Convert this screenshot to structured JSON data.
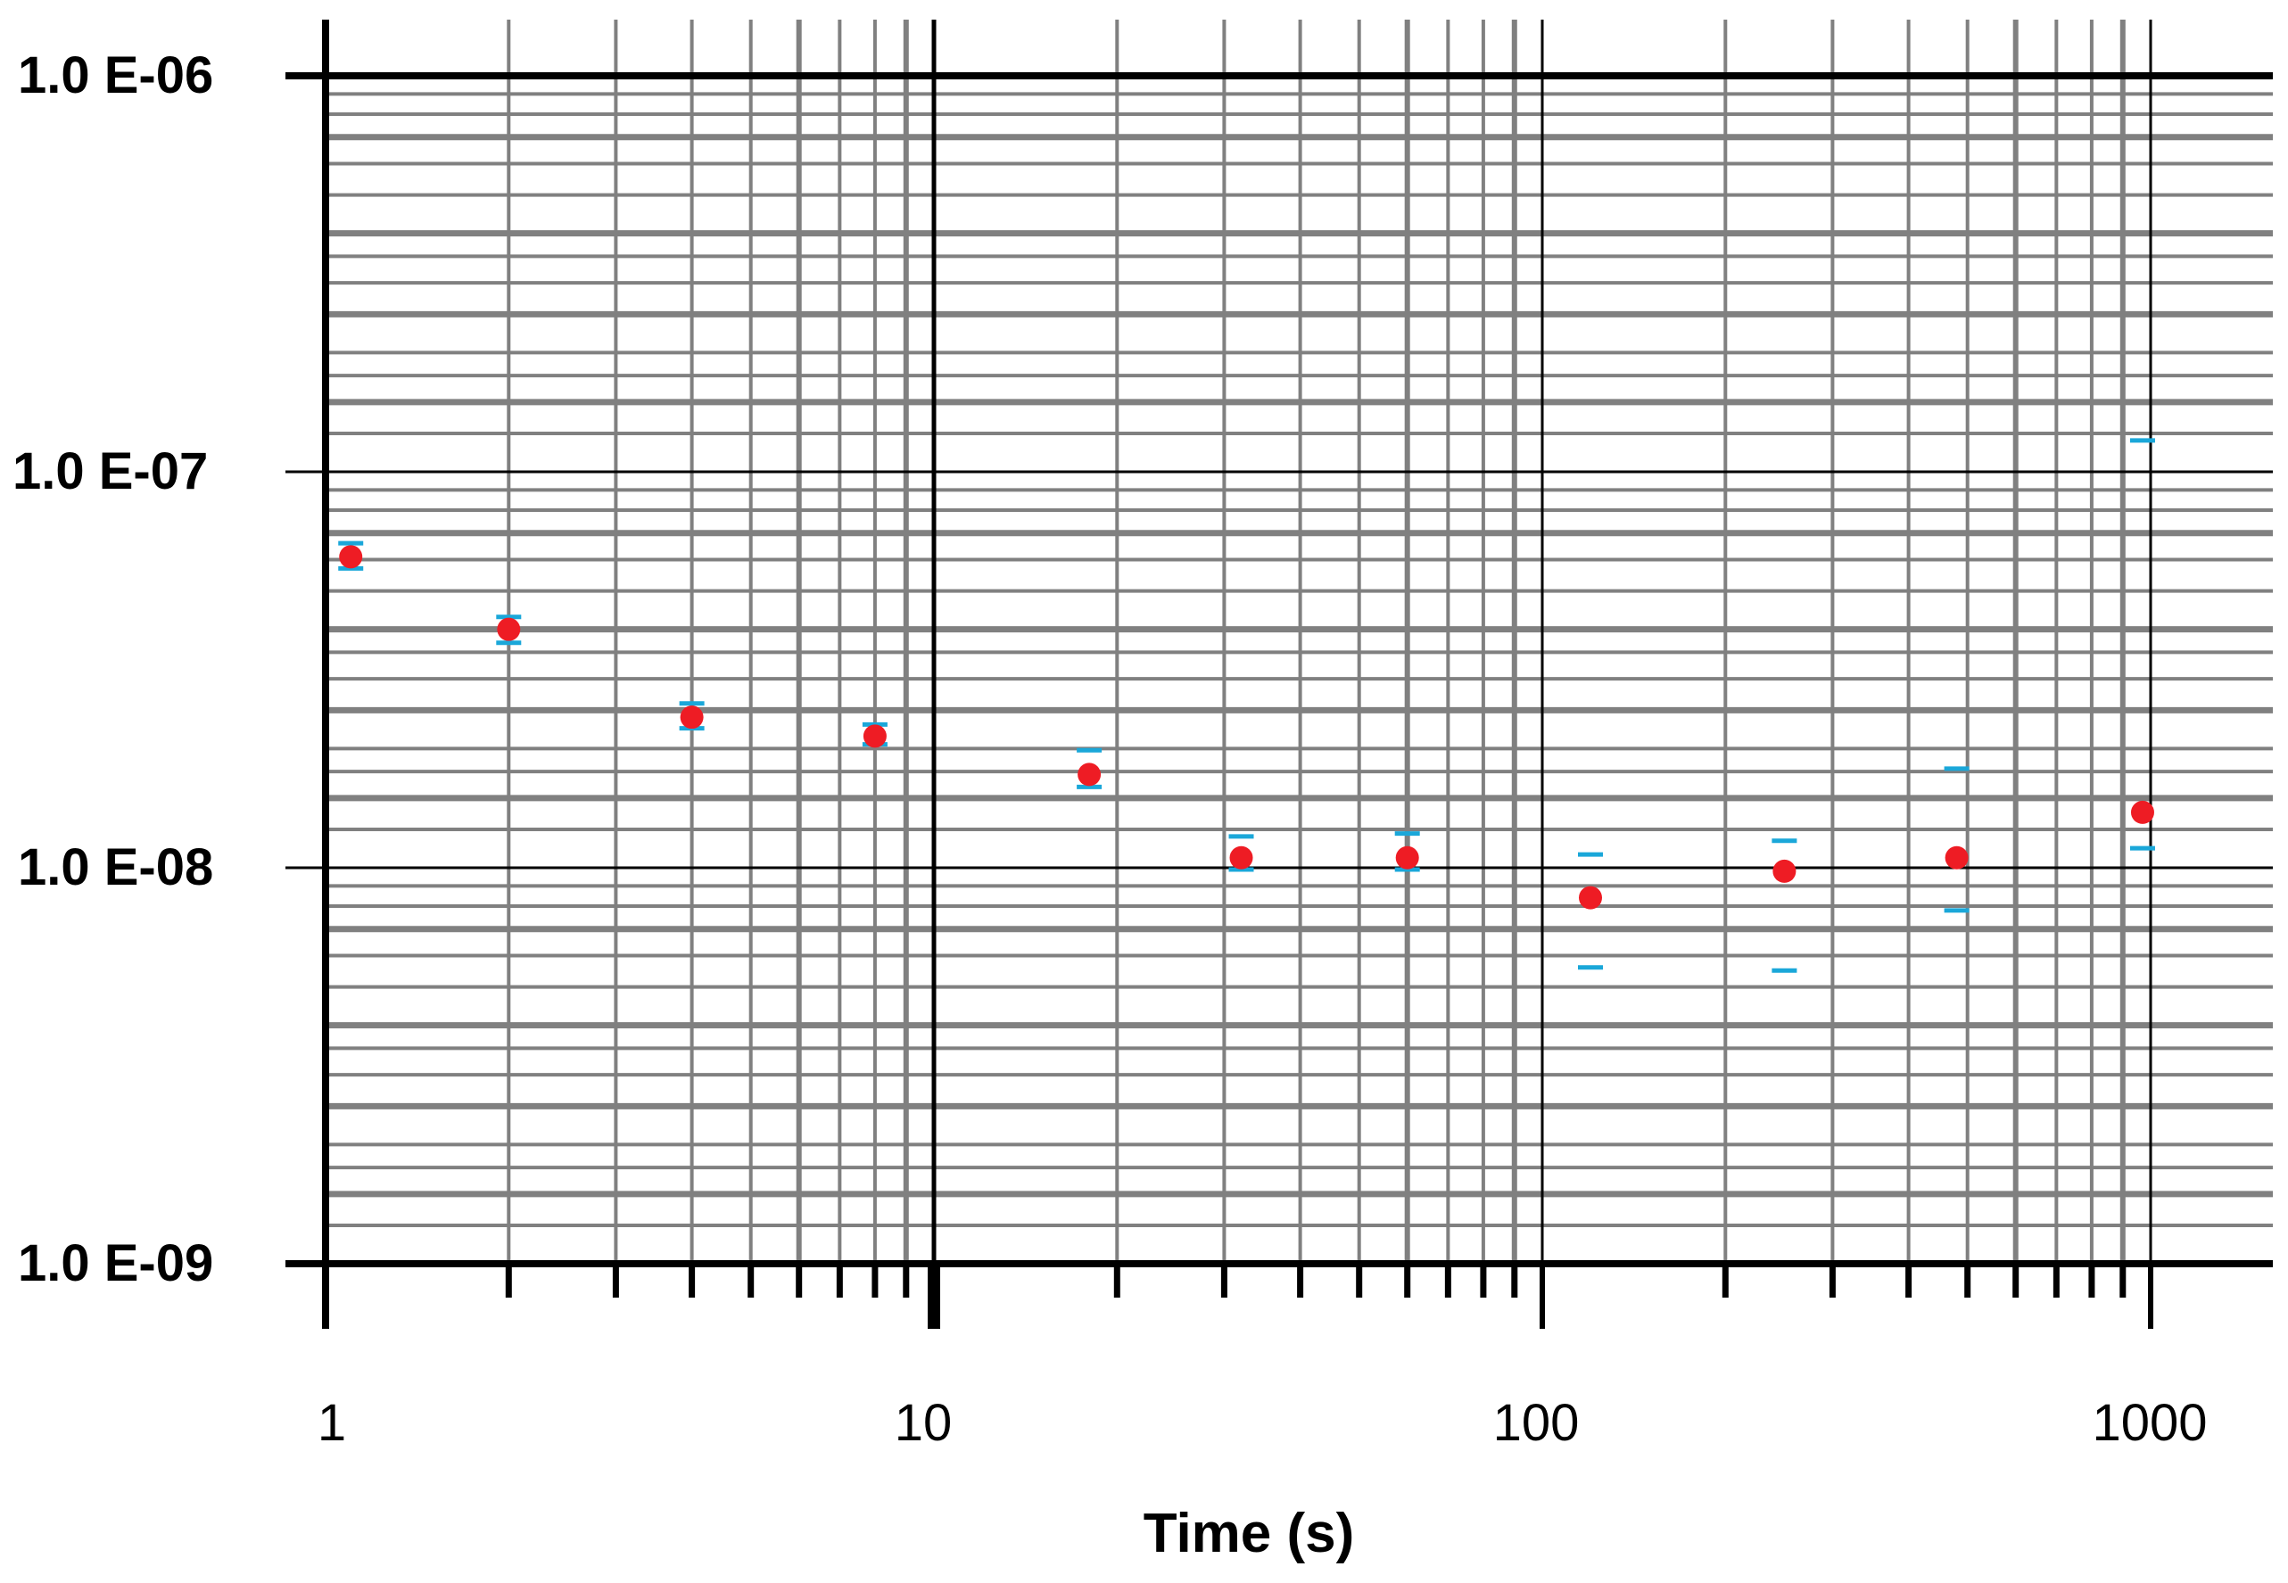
{
  "chart_data": {
    "type": "scatter",
    "title": "",
    "xlabel": "Time (s)",
    "ylabel": "",
    "x_scale": "log",
    "y_scale": "log",
    "xlim": [
      1,
      1500
    ],
    "ylim": [
      1e-09,
      1.2e-06
    ],
    "grid": true,
    "x_tick_labels": [
      "1",
      "10",
      "100",
      "1000"
    ],
    "x_tick_values": [
      1,
      10,
      100,
      1000
    ],
    "y_tick_labels": [
      "1.0 E-06",
      "1.0 E-07",
      "1.0 E-08",
      "1.0 E-09"
    ],
    "y_tick_values": [
      1e-06,
      1e-07,
      1e-08,
      1e-09
    ],
    "colors": {
      "point": "#ee1c24",
      "error_bar": "#1aa7d9",
      "major_grid": "#000000",
      "minor_grid": "#808080"
    },
    "series": [
      {
        "points": [
          {
            "x": 1.1,
            "y": 6.1e-08,
            "err_low": 5.7e-08,
            "err_high": 6.6e-08
          },
          {
            "x": 2,
            "y": 4e-08,
            "err_low": 3.7e-08,
            "err_high": 4.3e-08
          },
          {
            "x": 4,
            "y": 2.4e-08,
            "err_low": 2.25e-08,
            "err_high": 2.6e-08
          },
          {
            "x": 8,
            "y": 2.15e-08,
            "err_low": 2.05e-08,
            "err_high": 2.3e-08
          },
          {
            "x": 18,
            "y": 1.72e-08,
            "err_low": 1.6e-08,
            "err_high": 1.98e-08
          },
          {
            "x": 32,
            "y": 1.06e-08,
            "err_low": 9.9e-09,
            "err_high": 1.2e-08
          },
          {
            "x": 60,
            "y": 1.06e-08,
            "err_low": 9.9e-09,
            "err_high": 1.22e-08
          },
          {
            "x": 120,
            "y": 8.4e-09,
            "err_low": 5.6e-09,
            "err_high": 1.08e-08
          },
          {
            "x": 250,
            "y": 9.8e-09,
            "err_low": 5.5e-09,
            "err_high": 1.17e-08
          },
          {
            "x": 480,
            "y": 1.06e-08,
            "err_low": 7.8e-09,
            "err_high": 1.78e-08
          },
          {
            "x": 970,
            "y": 1.38e-08,
            "err_low": 1.12e-08,
            "err_high": 1.2e-07
          }
        ]
      }
    ]
  }
}
